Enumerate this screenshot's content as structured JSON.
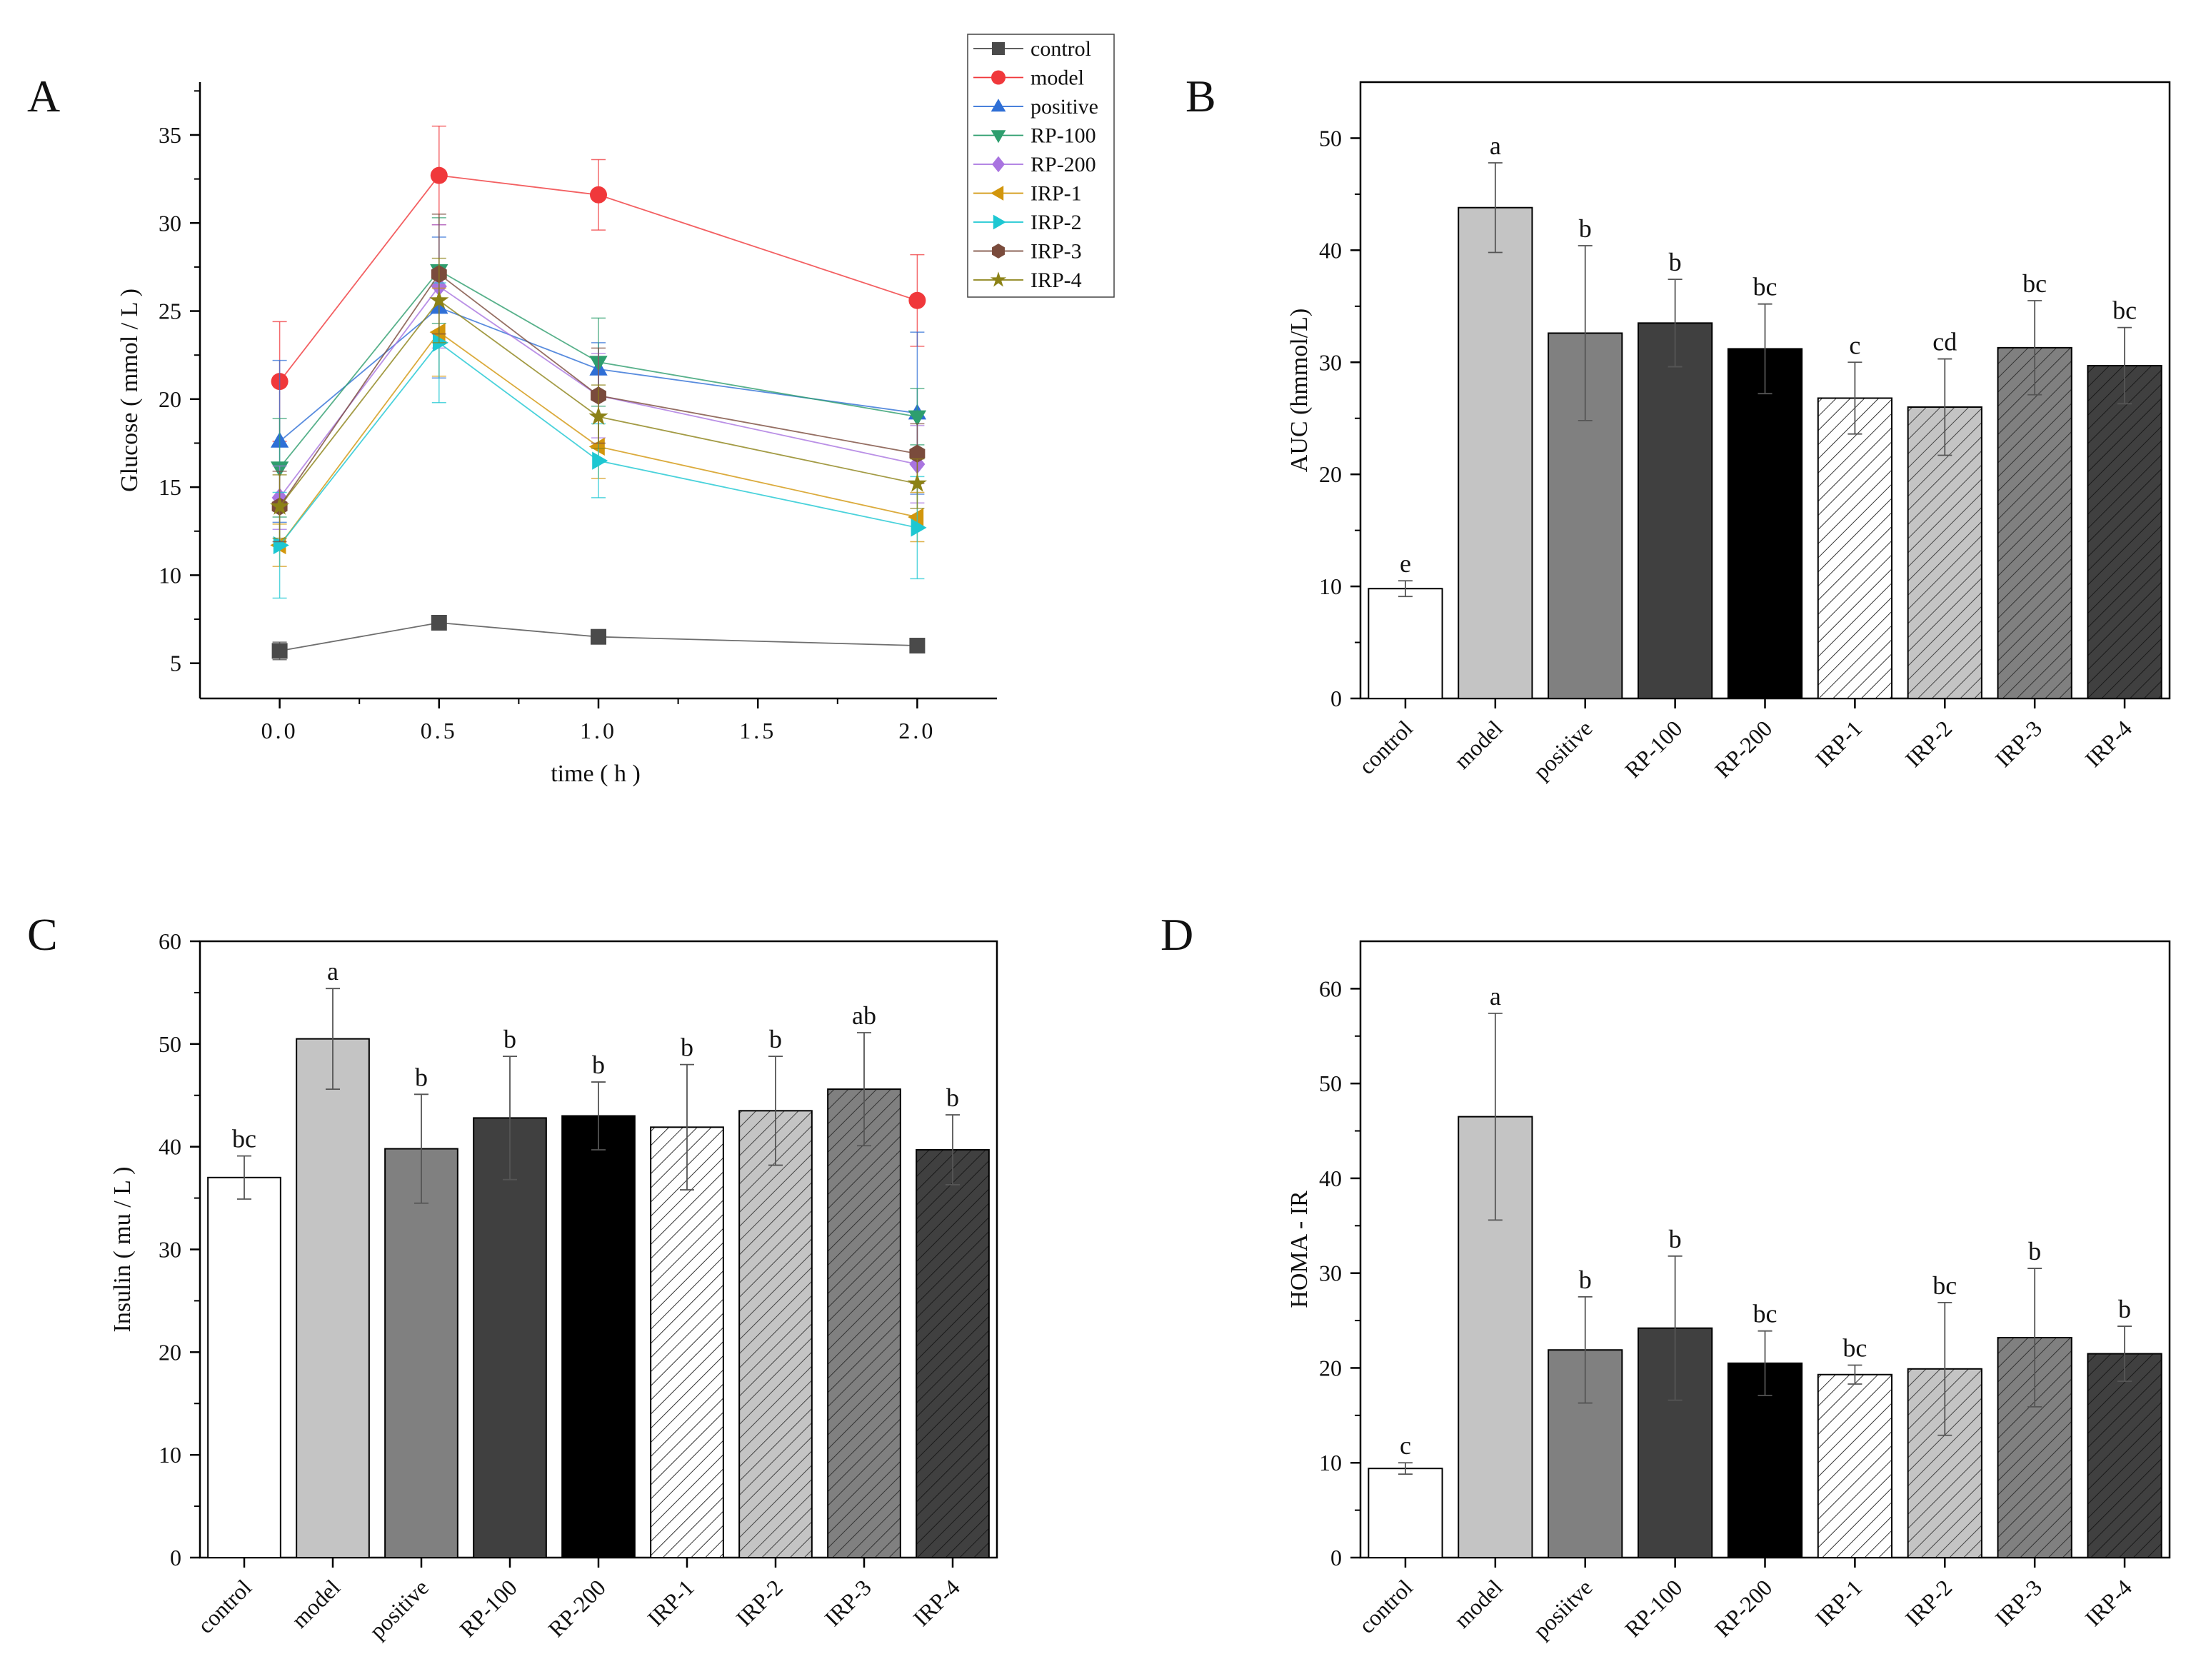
{
  "chart_data": [
    {
      "panel": "A",
      "type": "line",
      "xlabel": "time ( h )",
      "ylabel": "Glucose ( mmol / L )",
      "xlim": [
        -0.25,
        2.25
      ],
      "ylim": [
        3,
        38
      ],
      "x_ticks": [
        "0.0",
        "0.5",
        "1.0",
        "1.5",
        "2.0"
      ],
      "y_ticks": [
        "5",
        "10",
        "15",
        "20",
        "25",
        "30",
        "35"
      ],
      "x": [
        0,
        0.5,
        1.0,
        2.0
      ],
      "series": [
        {
          "name": "control",
          "color": "#4a4a4a",
          "marker": "square",
          "values": [
            5.7,
            7.3,
            6.5,
            6.0
          ],
          "errors": [
            0.5,
            0.4,
            0.4,
            0.2
          ]
        },
        {
          "name": "model",
          "color": "#f0383b",
          "marker": "circle",
          "values": [
            21.0,
            32.7,
            31.6,
            25.6
          ],
          "errors": [
            3.4,
            2.8,
            2.0,
            2.6
          ]
        },
        {
          "name": "positive",
          "color": "#2f6fd6",
          "marker": "triangle-up",
          "values": [
            17.6,
            25.2,
            21.7,
            19.2
          ],
          "errors": [
            4.6,
            4.0,
            1.5,
            4.6
          ]
        },
        {
          "name": "RP-100",
          "color": "#2e9e6e",
          "marker": "triangle-down",
          "values": [
            16.1,
            27.3,
            22.1,
            19.0
          ],
          "errors": [
            2.8,
            3.0,
            2.5,
            1.6
          ]
        },
        {
          "name": "RP-200",
          "color": "#a974e0",
          "marker": "diamond",
          "values": [
            14.4,
            26.4,
            20.2,
            16.3
          ],
          "errors": [
            1.8,
            3.5,
            2.4,
            2.2
          ]
        },
        {
          "name": "IRP-1",
          "color": "#d2960c",
          "marker": "triangle-left",
          "values": [
            11.7,
            23.8,
            17.3,
            13.3
          ],
          "errors": [
            1.2,
            2.5,
            1.8,
            1.4
          ]
        },
        {
          "name": "IRP-2",
          "color": "#1dc7d2",
          "marker": "triangle-right",
          "values": [
            11.7,
            23.2,
            16.5,
            12.7
          ],
          "errors": [
            3.0,
            3.4,
            2.1,
            2.9
          ]
        },
        {
          "name": "IRP-3",
          "color": "#7a4b3c",
          "marker": "hexagon",
          "values": [
            13.9,
            27.1,
            20.2,
            16.9
          ],
          "errors": [
            2.0,
            3.4,
            2.7,
            1.7
          ]
        },
        {
          "name": "IRP-4",
          "color": "#8c8216",
          "marker": "star",
          "values": [
            13.9,
            25.6,
            19.0,
            15.2
          ],
          "errors": [
            1.8,
            2.4,
            1.8,
            1.4
          ]
        }
      ]
    },
    {
      "panel": "B",
      "type": "bar",
      "ylabel": "AUC (hmmol/L)",
      "ylim": [
        0,
        55
      ],
      "y_ticks": [
        "0",
        "10",
        "20",
        "30",
        "40",
        "50"
      ],
      "categories": [
        "control",
        "model",
        "positive",
        "RP-100",
        "RP-200",
        "IRP-1",
        "IRP-2",
        "IRP-3",
        "IRP-4"
      ],
      "values": [
        9.8,
        43.8,
        32.6,
        33.5,
        31.2,
        26.8,
        26.0,
        31.3,
        29.7
      ],
      "errors": [
        0.7,
        4.0,
        7.8,
        3.9,
        4.0,
        3.2,
        4.3,
        4.2,
        3.4
      ],
      "significance": [
        "e",
        "a",
        "b",
        "b",
        "bc",
        "c",
        "cd",
        "bc",
        "bc"
      ]
    },
    {
      "panel": "C",
      "type": "bar",
      "ylabel": "Insulin ( mu / L )",
      "ylim": [
        0,
        60
      ],
      "y_ticks": [
        "0",
        "10",
        "20",
        "30",
        "40",
        "50",
        "60"
      ],
      "categories": [
        "control",
        "model",
        "positive",
        "RP-100",
        "RP-200",
        "IRP-1",
        "IRP-2",
        "IRP-3",
        "IRP-4"
      ],
      "values": [
        37.0,
        50.5,
        39.8,
        42.8,
        43.0,
        41.9,
        43.5,
        45.6,
        39.7
      ],
      "errors": [
        2.1,
        4.9,
        5.3,
        6.0,
        3.3,
        6.1,
        5.3,
        5.5,
        3.4
      ],
      "significance": [
        "bc",
        "a",
        "b",
        "b",
        "b",
        "b",
        "b",
        "ab",
        "b"
      ]
    },
    {
      "panel": "D",
      "type": "bar",
      "ylabel": "HOMA - IR",
      "ylim": [
        0,
        65
      ],
      "y_ticks": [
        "0",
        "10",
        "20",
        "30",
        "40",
        "50",
        "60"
      ],
      "categories": [
        "control",
        "model",
        "positive",
        "RP-100",
        "RP-200",
        "IRP-1",
        "IRP-2",
        "IRP-3",
        "IRP-4"
      ],
      "values": [
        9.4,
        46.5,
        21.9,
        24.2,
        20.5,
        19.3,
        19.9,
        23.2,
        21.5
      ],
      "errors": [
        0.6,
        10.9,
        5.6,
        7.6,
        3.4,
        1.0,
        7.0,
        7.3,
        2.9
      ],
      "significance": [
        "c",
        "a",
        "b",
        "b",
        "bc",
        "bc",
        "bc",
        "b",
        "b"
      ],
      "category_labels": [
        "control",
        "model",
        "posiitve",
        "RP-100",
        "RP-200",
        "IRP-1",
        "IRP-2",
        "IRP-3",
        "IRP-4"
      ]
    }
  ],
  "bar_styles": {
    "fills": [
      "#ffffff",
      "#c4c4c4",
      "#808080",
      "#404040",
      "#000000",
      "#ffffff",
      "#c4c4c4",
      "#808080",
      "#404040"
    ],
    "hatched": [
      false,
      false,
      false,
      false,
      false,
      true,
      true,
      true,
      true
    ]
  }
}
